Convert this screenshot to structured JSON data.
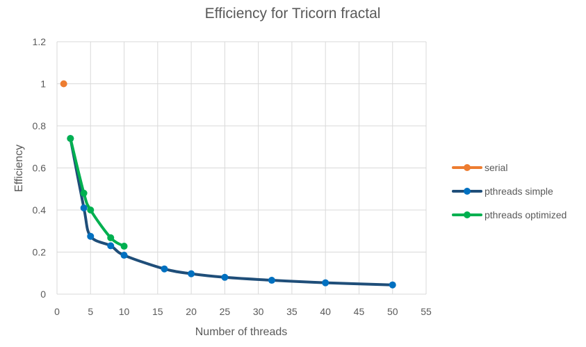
{
  "chart_data": {
    "type": "line",
    "title": "Efficiency for Tricorn fractal",
    "xlabel": "Number of threads",
    "ylabel": "Efficiency",
    "xlim": [
      0,
      55
    ],
    "ylim": [
      0,
      1.2
    ],
    "x_ticks": [
      0,
      5,
      10,
      15,
      20,
      25,
      30,
      35,
      40,
      45,
      50,
      55
    ],
    "y_ticks": [
      0,
      0.2,
      0.4,
      0.6,
      0.8,
      1,
      1.2
    ],
    "x_tick_labels": [
      "0",
      "5",
      "10",
      "15",
      "20",
      "25",
      "30",
      "35",
      "40",
      "45",
      "50",
      "55"
    ],
    "y_tick_labels": [
      "0",
      "0.2",
      "0.4",
      "0.6",
      "0.8",
      "1",
      "1.2"
    ],
    "grid": true,
    "legend_position": "right",
    "series": [
      {
        "name": "serial",
        "color": "#ED7D31",
        "x": [
          1
        ],
        "y": [
          1.0
        ]
      },
      {
        "name": "pthreads simple",
        "color": "#0070C0",
        "line_color": "#1F4E79",
        "x": [
          2,
          4,
          5,
          8,
          10,
          16,
          20,
          25,
          32,
          40,
          50
        ],
        "y": [
          0.74,
          0.41,
          0.275,
          0.23,
          0.185,
          0.12,
          0.097,
          0.08,
          0.066,
          0.054,
          0.044
        ]
      },
      {
        "name": "pthreads optimized",
        "color": "#00B050",
        "x": [
          2,
          4,
          5,
          8,
          10
        ],
        "y": [
          0.74,
          0.48,
          0.4,
          0.268,
          0.228
        ]
      }
    ]
  }
}
